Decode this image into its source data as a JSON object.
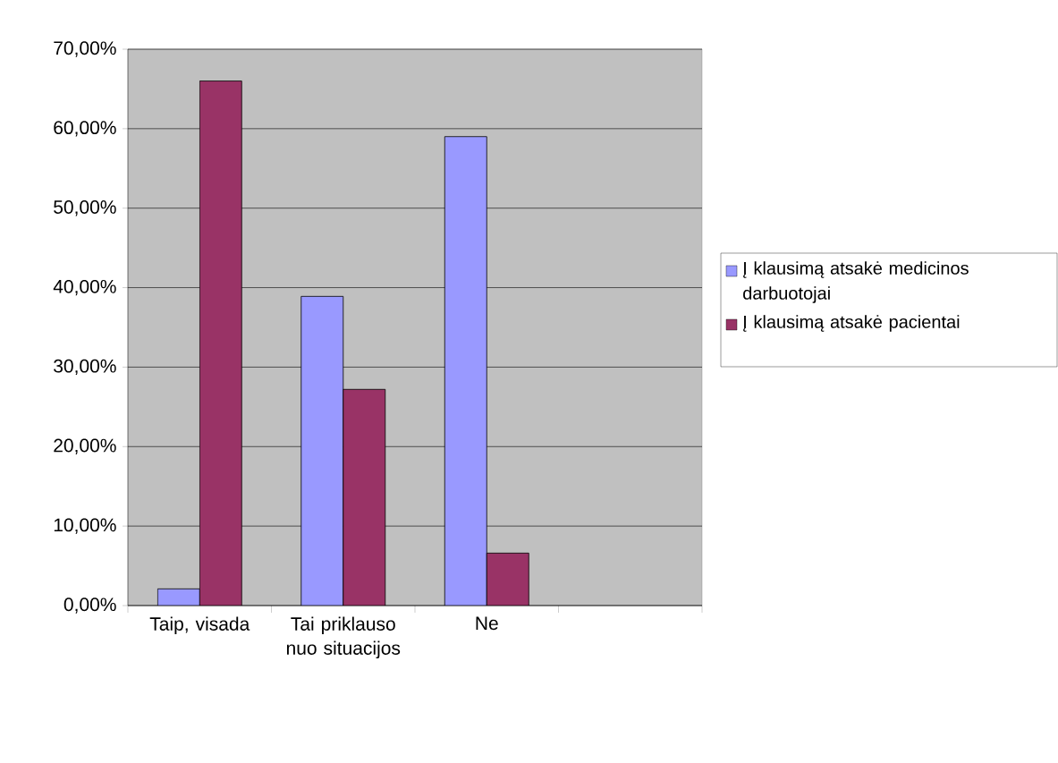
{
  "chart_data": {
    "type": "bar",
    "categories": [
      "Taip, visada",
      "Tai priklauso nuo situacijos",
      "Ne",
      null
    ],
    "series": [
      {
        "name": "Į klausimą atsakė medicinos darbuotojai",
        "color": "#9999ff",
        "values": [
          2.1,
          38.9,
          59.0,
          null
        ]
      },
      {
        "name": "Į klausimą atsakė pacientai",
        "color": "#993366",
        "values": [
          66.0,
          27.2,
          6.6,
          null
        ]
      }
    ],
    "ylim": [
      0,
      70
    ],
    "yticks": [
      {
        "value": 0,
        "label": "0,00%"
      },
      {
        "value": 10,
        "label": "10,00%"
      },
      {
        "value": 20,
        "label": "20,00%"
      },
      {
        "value": 30,
        "label": "30,00%"
      },
      {
        "value": 40,
        "label": "40,00%"
      },
      {
        "value": 50,
        "label": "50,00%"
      },
      {
        "value": 60,
        "label": "60,00%"
      },
      {
        "value": 70,
        "label": "70,00%"
      }
    ],
    "grid": "y",
    "legend": "right"
  }
}
